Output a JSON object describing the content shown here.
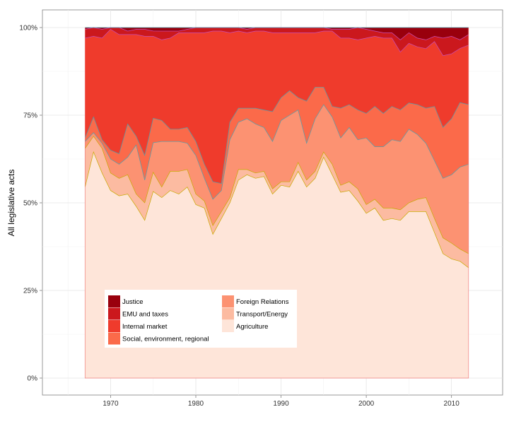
{
  "chart_data": {
    "type": "area",
    "stacked": true,
    "normalized": true,
    "ylabel": "All legislative acts",
    "xlabel": "",
    "xlim": [
      1962,
      2016
    ],
    "ylim": [
      0,
      1
    ],
    "x_ticks": [
      {
        "value": 1970,
        "label": "1970"
      },
      {
        "value": 1980,
        "label": "1980"
      },
      {
        "value": 1990,
        "label": "1990"
      },
      {
        "value": 2000,
        "label": "2000"
      },
      {
        "value": 2010,
        "label": "2010"
      }
    ],
    "y_ticks": [
      {
        "value": 0,
        "label": "0%"
      },
      {
        "value": 0.25,
        "label": "25%"
      },
      {
        "value": 0.5,
        "label": "50%"
      },
      {
        "value": 0.75,
        "label": "75%"
      },
      {
        "value": 1,
        "label": "100%"
      }
    ],
    "grid": true,
    "legend_position": "bottom-left inside",
    "x": [
      1967,
      1968,
      1969,
      1970,
      1971,
      1972,
      1973,
      1974,
      1975,
      1976,
      1977,
      1978,
      1979,
      1980,
      1981,
      1982,
      1983,
      1984,
      1985,
      1986,
      1987,
      1988,
      1989,
      1990,
      1991,
      1992,
      1993,
      1994,
      1995,
      1996,
      1997,
      1998,
      1999,
      2000,
      2001,
      2002,
      2003,
      2004,
      2005,
      2006,
      2007,
      2008,
      2009,
      2010,
      2011,
      2012
    ],
    "series": [
      {
        "name": "Agriculture",
        "color": "#fee5d9",
        "values": [
          0.545,
          0.645,
          0.585,
          0.535,
          0.52,
          0.525,
          0.49,
          0.45,
          0.535,
          0.515,
          0.535,
          0.525,
          0.545,
          0.495,
          0.485,
          0.41,
          0.455,
          0.5,
          0.565,
          0.58,
          0.57,
          0.575,
          0.525,
          0.55,
          0.545,
          0.59,
          0.545,
          0.57,
          0.63,
          0.58,
          0.53,
          0.535,
          0.505,
          0.47,
          0.485,
          0.45,
          0.455,
          0.45,
          0.475,
          0.475,
          0.475,
          0.415,
          0.355,
          0.34,
          0.335,
          0.315
        ]
      },
      {
        "name": "Transport/Energy",
        "color": "#fcbba1",
        "values": [
          0.11,
          0.045,
          0.07,
          0.05,
          0.05,
          0.055,
          0.035,
          0.05,
          0.055,
          0.03,
          0.055,
          0.065,
          0.05,
          0.03,
          0.02,
          0.025,
          0.02,
          0.015,
          0.03,
          0.015,
          0.015,
          0.015,
          0.015,
          0.01,
          0.015,
          0.025,
          0.02,
          0.02,
          0.015,
          0.03,
          0.02,
          0.025,
          0.035,
          0.025,
          0.025,
          0.035,
          0.03,
          0.03,
          0.025,
          0.035,
          0.04,
          0.04,
          0.045,
          0.045,
          0.035,
          0.04
        ]
      },
      {
        "name": "Foreign Relations",
        "color": "#fc9272",
        "values": [
          0.02,
          0.01,
          0.015,
          0.04,
          0.04,
          0.05,
          0.14,
          0.065,
          0.085,
          0.13,
          0.085,
          0.085,
          0.075,
          0.11,
          0.065,
          0.075,
          0.06,
          0.165,
          0.135,
          0.145,
          0.14,
          0.125,
          0.135,
          0.175,
          0.19,
          0.15,
          0.105,
          0.15,
          0.135,
          0.135,
          0.135,
          0.155,
          0.14,
          0.19,
          0.15,
          0.175,
          0.195,
          0.195,
          0.21,
          0.185,
          0.155,
          0.165,
          0.17,
          0.195,
          0.235,
          0.255
        ]
      },
      {
        "name": "Social, environment, regional",
        "color": "#fb6a4a",
        "values": [
          0.01,
          0.045,
          0.01,
          0.025,
          0.03,
          0.095,
          0.025,
          0.07,
          0.07,
          0.06,
          0.035,
          0.035,
          0.045,
          0.04,
          0.04,
          0.05,
          0.02,
          0.05,
          0.04,
          0.03,
          0.045,
          0.05,
          0.085,
          0.065,
          0.07,
          0.035,
          0.12,
          0.09,
          0.05,
          0.03,
          0.085,
          0.065,
          0.085,
          0.07,
          0.115,
          0.095,
          0.095,
          0.09,
          0.075,
          0.085,
          0.1,
          0.155,
          0.145,
          0.16,
          0.185,
          0.17
        ]
      },
      {
        "name": "Internal market",
        "color": "#ef3b2c",
        "values": [
          0.285,
          0.23,
          0.29,
          0.345,
          0.34,
          0.255,
          0.29,
          0.34,
          0.235,
          0.23,
          0.26,
          0.275,
          0.27,
          0.31,
          0.375,
          0.43,
          0.435,
          0.255,
          0.22,
          0.215,
          0.22,
          0.225,
          0.225,
          0.185,
          0.165,
          0.185,
          0.195,
          0.155,
          0.16,
          0.215,
          0.2,
          0.19,
          0.2,
          0.215,
          0.2,
          0.215,
          0.195,
          0.165,
          0.17,
          0.165,
          0.17,
          0.185,
          0.205,
          0.185,
          0.155,
          0.17
        ]
      },
      {
        "name": "EMU and taxes",
        "color": "#cb181d",
        "values": [
          0.025,
          0.025,
          0.025,
          0.005,
          0.02,
          0.01,
          0.015,
          0.02,
          0.015,
          0.025,
          0.02,
          0.005,
          0.01,
          0.015,
          0.015,
          0.01,
          0.01,
          0.015,
          0.01,
          0.01,
          0.01,
          0.01,
          0.015,
          0.015,
          0.015,
          0.015,
          0.015,
          0.015,
          0.01,
          0.005,
          0.025,
          0.025,
          0.035,
          0.025,
          0.015,
          0.015,
          0.015,
          0.035,
          0.03,
          0.025,
          0.025,
          0.015,
          0.05,
          0.05,
          0.025,
          0.03
        ]
      },
      {
        "name": "Justice",
        "color": "#99000d",
        "values": [
          0.005,
          0,
          0.005,
          0,
          0,
          0.01,
          0.005,
          0.005,
          0.01,
          0.01,
          0.01,
          0.01,
          0.005,
          0,
          0,
          0,
          0,
          0,
          0,
          0.005,
          0,
          0,
          0,
          0,
          0,
          0,
          0,
          0,
          0,
          0.005,
          0.005,
          0.005,
          0,
          0.005,
          0.01,
          0.015,
          0.015,
          0.035,
          0.015,
          0.03,
          0.035,
          0.025,
          0.03,
          0.025,
          0.035,
          0.02
        ]
      }
    ],
    "legend": {
      "col1": [
        {
          "label": "Justice",
          "color": "#99000d"
        },
        {
          "label": "EMU and taxes",
          "color": "#cb181d"
        },
        {
          "label": "Internal market",
          "color": "#ef3b2c"
        },
        {
          "label": "Social, environment, regional",
          "color": "#fb6a4a"
        }
      ],
      "col2": [
        {
          "label": "Foreign Relations",
          "color": "#fc9272"
        },
        {
          "label": "Transport/Energy",
          "color": "#fcbba1"
        },
        {
          "label": "Agriculture",
          "color": "#fee5d9"
        }
      ]
    }
  }
}
